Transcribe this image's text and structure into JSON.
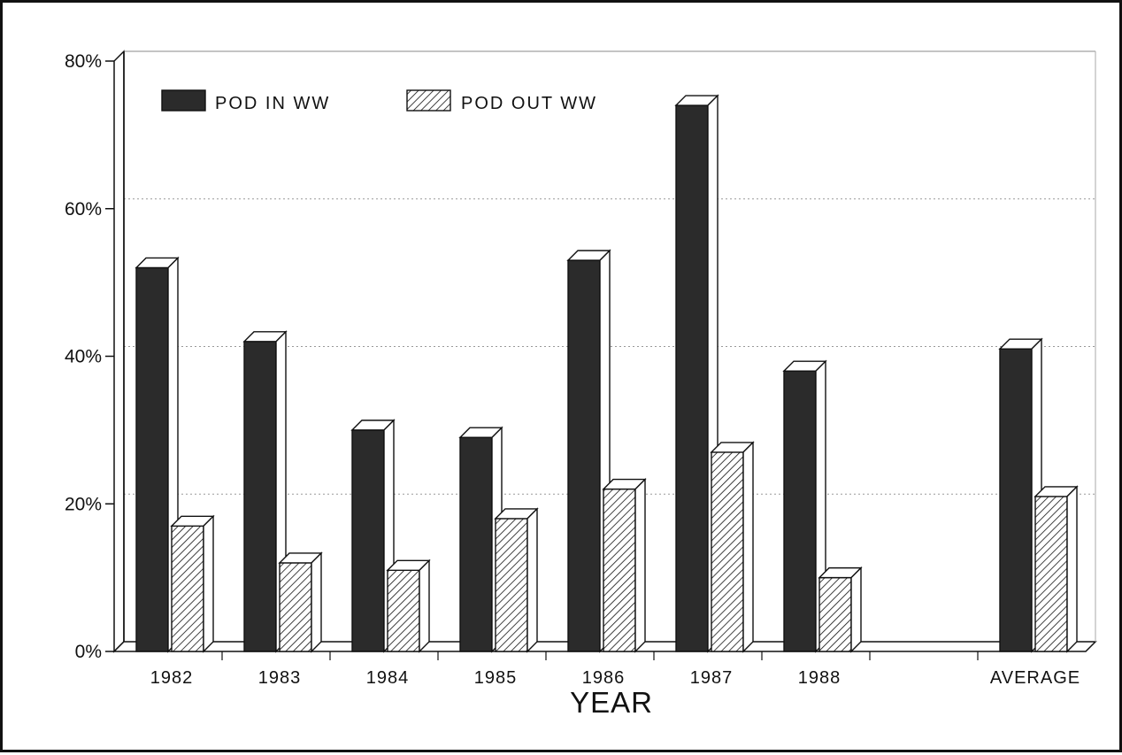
{
  "chart_data": {
    "type": "bar",
    "title": "",
    "xlabel": "YEAR",
    "ylabel": "",
    "ylim": [
      0,
      80
    ],
    "y_ticks": [
      "0%",
      "20%",
      "40%",
      "60%",
      "80%"
    ],
    "y_tick_values": [
      0,
      20,
      40,
      60,
      80
    ],
    "categories": [
      "1982",
      "1983",
      "1984",
      "1985",
      "1986",
      "1987",
      "1988",
      "",
      "AVERAGE"
    ],
    "series": [
      {
        "name": "POD IN WW",
        "values": [
          52,
          42,
          30,
          29,
          53,
          74,
          38,
          null,
          41
        ]
      },
      {
        "name": "POD OUT WW",
        "values": [
          17,
          12,
          11,
          18,
          22,
          27,
          10,
          null,
          21
        ]
      }
    ],
    "legend_position": "top-left",
    "grid": true,
    "colors": {
      "pod_in": "#2b2b2b",
      "pod_out": "#ffffff",
      "axis": "#111111"
    }
  }
}
